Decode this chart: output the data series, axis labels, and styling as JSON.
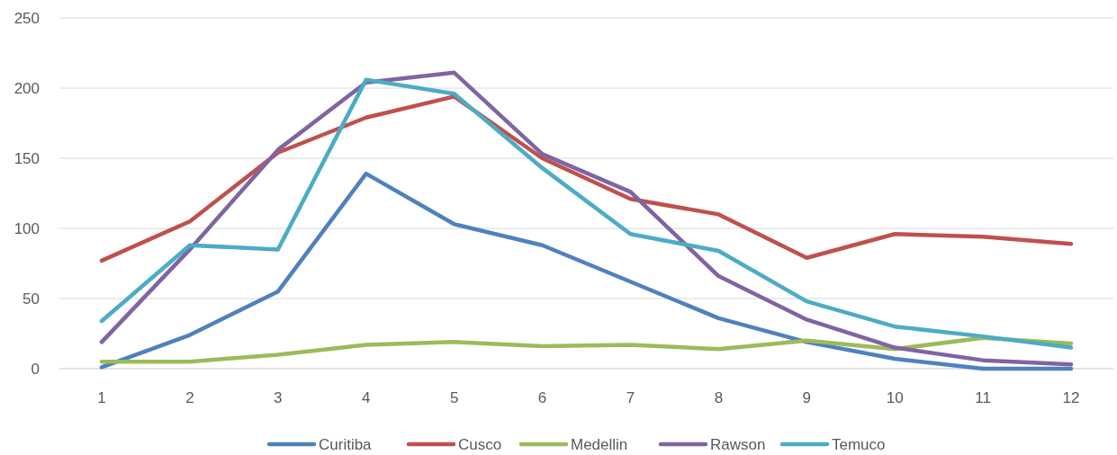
{
  "chart_data": {
    "type": "line",
    "x": [
      1,
      2,
      3,
      4,
      5,
      6,
      7,
      8,
      9,
      10,
      11,
      12
    ],
    "xlim": [
      0.52,
      12.48
    ],
    "xticks": [
      1,
      2,
      3,
      4,
      5,
      6,
      7,
      8,
      9,
      10,
      11,
      12
    ],
    "series": [
      {
        "name": "Curitiba",
        "color": "#4f81bd",
        "values": [
          1,
          24,
          55,
          139,
          103,
          88,
          62,
          36,
          19,
          7,
          0,
          0
        ]
      },
      {
        "name": "Cusco",
        "color": "#c0504d",
        "values": [
          77,
          105,
          154,
          179,
          194,
          150,
          121,
          110,
          79,
          96,
          94,
          89
        ]
      },
      {
        "name": "Medellin",
        "color": "#9bbb59",
        "values": [
          5,
          5,
          10,
          17,
          19,
          16,
          17,
          14,
          20,
          14,
          22,
          18
        ]
      },
      {
        "name": "Rawson",
        "color": "#8064a2",
        "values": [
          19,
          85,
          156,
          204,
          211,
          153,
          126,
          66,
          35,
          15,
          6,
          3
        ]
      },
      {
        "name": "Temuco",
        "color": "#4bacc6",
        "values": [
          34,
          88,
          85,
          206,
          196,
          143,
          96,
          84,
          48,
          30,
          23,
          15
        ]
      }
    ],
    "ylim": [
      0,
      250
    ],
    "yticks": [
      0,
      50,
      100,
      150,
      200,
      250
    ],
    "grid": "y",
    "legend": "bottom",
    "marker": "none",
    "line_style": "solid"
  }
}
